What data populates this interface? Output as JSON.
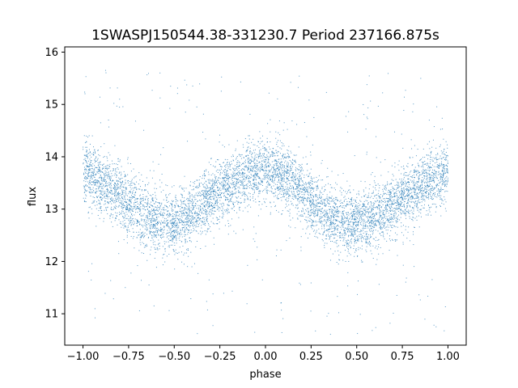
{
  "chart_data": {
    "type": "scatter",
    "title": "1SWASPJ150544.38-331230.7 Period 237166.875s",
    "xlabel": "phase",
    "ylabel": "flux",
    "xlim": [
      -1.1,
      1.1
    ],
    "ylim": [
      10.4,
      16.1
    ],
    "xticks": [
      -1.0,
      -0.75,
      -0.5,
      -0.25,
      0.0,
      0.25,
      0.5,
      0.75,
      1.0
    ],
    "xtick_labels": [
      "−1.00",
      "−0.75",
      "−0.50",
      "−0.25",
      "0.00",
      "0.25",
      "0.50",
      "0.75",
      "1.00"
    ],
    "yticks": [
      11,
      12,
      13,
      14,
      15,
      16
    ],
    "ytick_labels": [
      "11",
      "12",
      "13",
      "14",
      "15",
      "16"
    ],
    "grid": false,
    "point_color": "#1f77b4",
    "series": [
      {
        "phase_range": [
          -1.0,
          1.0
        ],
        "x": [
          -1.0,
          -0.9,
          -0.8,
          -0.7,
          -0.6,
          -0.5,
          -0.4,
          -0.3,
          -0.2,
          -0.1,
          0.0,
          0.1,
          0.2,
          0.3,
          0.4,
          0.5,
          0.6,
          0.7,
          0.8,
          0.9,
          1.0
        ],
        "mean_flux": [
          13.72,
          13.55,
          13.25,
          12.98,
          12.78,
          12.72,
          12.92,
          13.2,
          13.47,
          13.65,
          13.78,
          13.62,
          13.35,
          13.0,
          12.78,
          12.72,
          12.85,
          13.08,
          13.35,
          13.55,
          13.72
        ],
        "core_scatter": 0.3,
        "outlier_range": [
          10.6,
          15.7
        ]
      }
    ]
  }
}
